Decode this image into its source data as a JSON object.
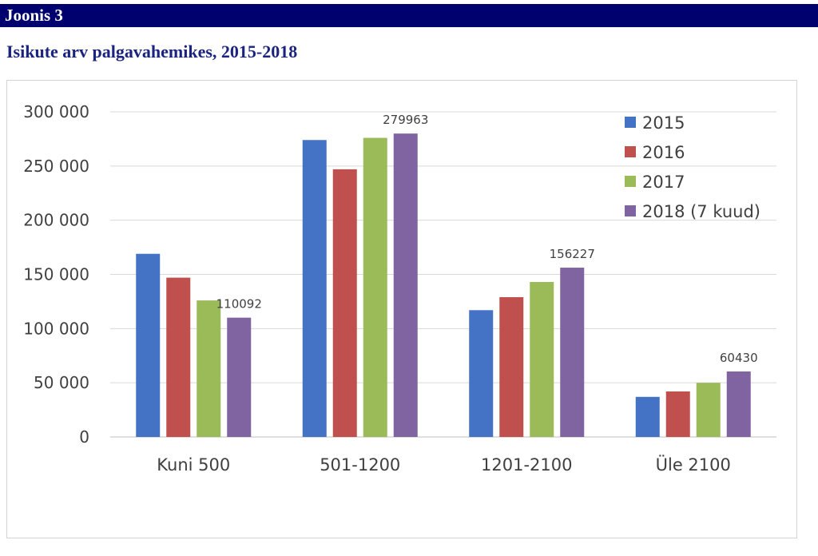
{
  "header": {
    "label": "Joonis 3"
  },
  "chart_data": {
    "type": "bar",
    "title": "Isikute arv palgavahemikes, 2015-2018",
    "xlabel": "",
    "ylabel": "",
    "categories": [
      "Kuni 500",
      "501-1200",
      "1201-2100",
      "Üle 2100"
    ],
    "series": [
      {
        "name": "2015",
        "color": "#4472c4",
        "values": [
          169000,
          274000,
          117000,
          37000
        ]
      },
      {
        "name": "2016",
        "color": "#c0504d",
        "values": [
          147000,
          247000,
          129000,
          42000
        ]
      },
      {
        "name": "2017",
        "color": "#9bbb59",
        "values": [
          126000,
          276000,
          143000,
          50000
        ]
      },
      {
        "name": "2018 (7 kuud)",
        "color": "#8064a2",
        "values": [
          110092,
          279963,
          156227,
          60430
        ]
      }
    ],
    "data_labels": {
      "series_index": 3,
      "texts": [
        "110092",
        "279963",
        "156227",
        "60430"
      ]
    },
    "ylim": [
      0,
      300000
    ],
    "yticks": [
      0,
      50000,
      100000,
      150000,
      200000,
      250000,
      300000
    ],
    "ytick_labels": [
      "0",
      "50 000",
      "100 000",
      "150 000",
      "200 000",
      "250 000",
      "300 000"
    ],
    "grid": true,
    "legend": "top-right"
  }
}
